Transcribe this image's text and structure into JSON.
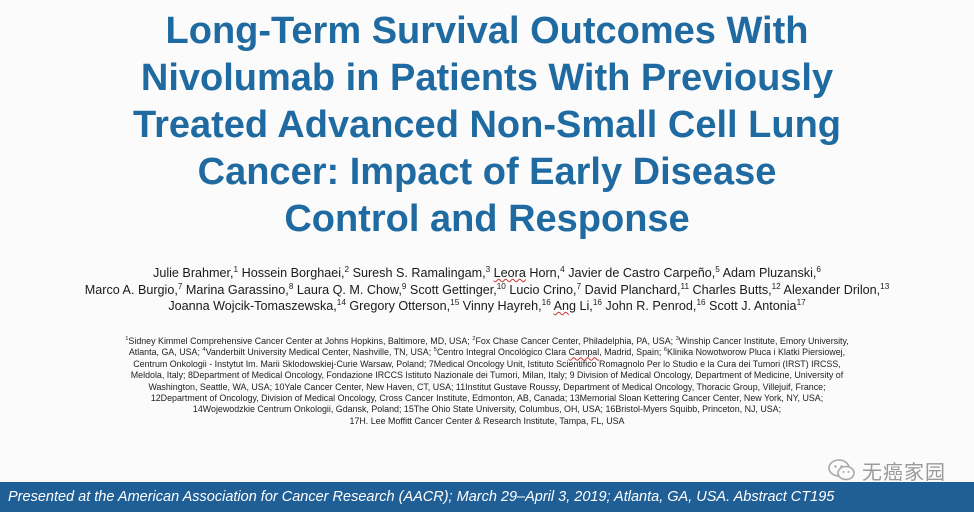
{
  "title": {
    "lines": [
      "Long-Term Survival Outcomes With",
      "Nivolumab in Patients With Previously",
      "Treated Advanced Non-Small Cell Lung",
      "Cancer: Impact of Early Disease",
      "Control and Response"
    ]
  },
  "authors": {
    "line1": [
      "Julie Brahmer,",
      "1",
      " Hossein Borghaei,",
      "2",
      " Suresh S. Ramalingam,",
      "3",
      " ",
      "Leora",
      " Horn,",
      "4",
      " Javier de Castro Carpeño,",
      "5",
      " Adam Pluzanski,",
      "6"
    ],
    "line2": [
      "Marco A. Burgio,",
      "7",
      " Marina Garassino,",
      "8",
      " Laura Q. M. Chow,",
      "9",
      " Scott Gettinger,",
      "10",
      " Lucio Crino,",
      "7",
      " David Planchard,",
      "11",
      " Charles Butts,",
      "12",
      " Alexander Drilon,",
      "13"
    ],
    "line3": [
      "Joanna Wojcik-Tomaszewska,",
      "14",
      " Gregory Otterson,",
      "15",
      " Vinny Hayreh,",
      "16",
      " ",
      "Ang",
      " Li,",
      "16",
      " John R. Penrod,",
      "16",
      " Scott J. Antonia",
      "17"
    ]
  },
  "affiliations": {
    "line1": [
      "1",
      "Sidney Kimmel Comprehensive Cancer Center at Johns Hopkins, Baltimore, MD, USA; ",
      "2",
      "Fox Chase Cancer Center, Philadelphia, PA, USA; ",
      "3",
      "Winship Cancer Institute, Emory University,"
    ],
    "line2": [
      "Atlanta, GA, USA; ",
      "4",
      "Vanderbilt University Medical Center, Nashville, TN, USA; ",
      "5",
      "Centro Integral Oncológico Clara ",
      "Campal",
      ", Madrid, Spain; ",
      "6",
      "Klinika Nowotworow Pluca i Klatki Piersiowej,"
    ],
    "line3": "Centrum Onkologii - Instytut Im. Marii Sklodowskiej-Curie Warsaw, Poland; 7Medical Oncology Unit, Istituto Scientifico Romagnolo Per lo Studio e la Cura dei Tumori (IRST) IRCSS,",
    "line4": "Meldola, Italy; 8Department of Medical Oncology, Fondazione IRCCS Istituto Nazionale dei Tumori, Milan, Italy; 9 Division of Medical Oncology, Department of Medicine, University of",
    "line5": "Washington, Seattle, WA, USA; 10Yale Cancer Center, New Haven, CT, USA; 11Institut Gustave Roussy, Department of Medical Oncology, Thoracic Group, Villejuif, France;",
    "line6": "12Department of Oncology, Division of Medical Oncology, Cross Cancer Institute, Edmonton, AB, Canada; 13Memorial Sloan Kettering Cancer Center, New York, NY, USA;",
    "line7": "14Wojewodzkie Centrum Onkologii, Gdansk, Poland; 15The Ohio State University, Columbus, OH, USA; 16Bristol-Myers Squibb, Princeton, NJ, USA;",
    "line8": "17H. Lee Moffitt Cancer Center & Research Institute, Tampa, FL, USA"
  },
  "watermark": {
    "text": "无癌家园",
    "icon": "wechat-icon",
    "color": "#9a9a9a"
  },
  "footer": {
    "text": "Presented at the American Association for Cancer Research (AACR); March 29–April 3, 2019; Atlanta, GA, USA. Abstract CT195",
    "background": "#1f5f96"
  },
  "colors": {
    "title": "#1f6aa1"
  }
}
